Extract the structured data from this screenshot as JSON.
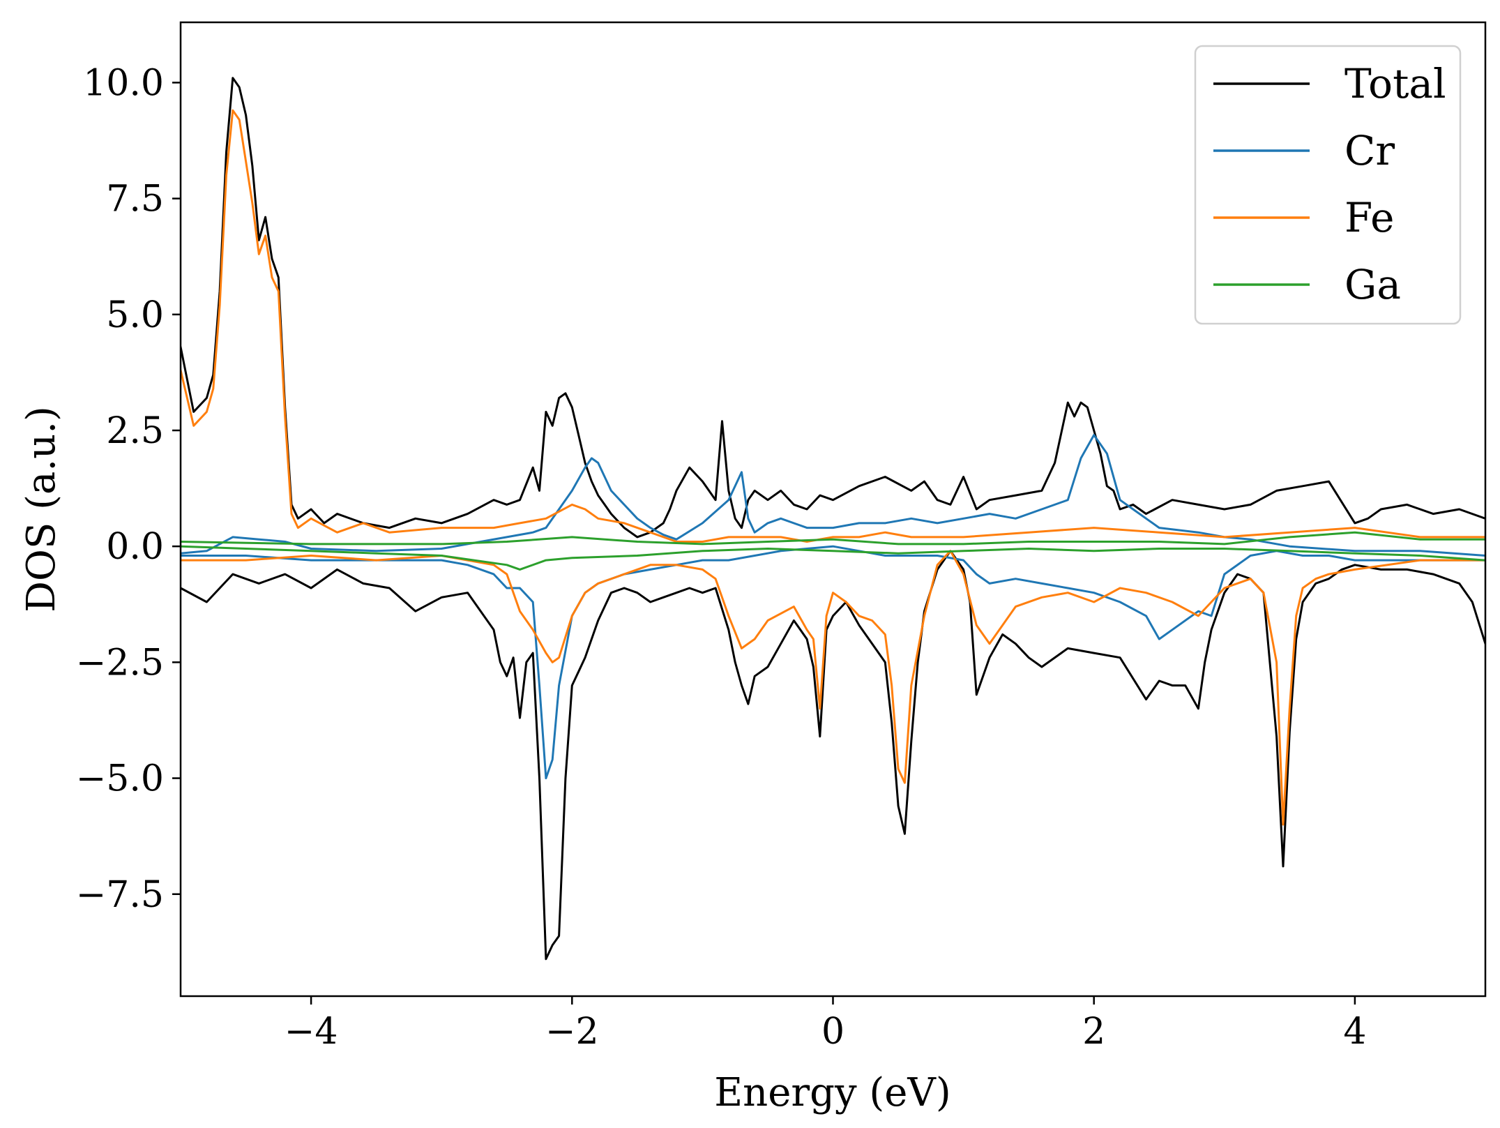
{
  "chart_data": {
    "type": "line",
    "title": "",
    "xlabel": "Energy (eV)",
    "ylabel": "DOS (a.u.)",
    "xlim": [
      -5,
      5
    ],
    "ylim": [
      -9.7,
      11.3
    ],
    "xticks": [
      -4,
      -2,
      0,
      2,
      4
    ],
    "xtick_labels": [
      "−4",
      "−2",
      "0",
      "2",
      "4"
    ],
    "yticks": [
      -7.5,
      -5.0,
      -2.5,
      0.0,
      2.5,
      5.0,
      7.5,
      10.0
    ],
    "ytick_labels": [
      "−7.5",
      "−5.0",
      "−2.5",
      "0.0",
      "2.5",
      "5.0",
      "7.5",
      "10.0"
    ],
    "grid": false,
    "legend_position": "top-right",
    "series": [
      {
        "name": "Total",
        "color": "#000000",
        "spin_up": {
          "x": [
            -5.0,
            -4.9,
            -4.8,
            -4.75,
            -4.7,
            -4.65,
            -4.6,
            -4.55,
            -4.5,
            -4.45,
            -4.4,
            -4.35,
            -4.3,
            -4.25,
            -4.2,
            -4.15,
            -4.1,
            -4.0,
            -3.9,
            -3.8,
            -3.6,
            -3.4,
            -3.2,
            -3.0,
            -2.8,
            -2.6,
            -2.5,
            -2.4,
            -2.3,
            -2.25,
            -2.2,
            -2.15,
            -2.1,
            -2.05,
            -2.0,
            -1.95,
            -1.9,
            -1.85,
            -1.8,
            -1.75,
            -1.7,
            -1.6,
            -1.5,
            -1.4,
            -1.3,
            -1.25,
            -1.2,
            -1.1,
            -1.0,
            -0.9,
            -0.85,
            -0.8,
            -0.75,
            -0.7,
            -0.65,
            -0.6,
            -0.5,
            -0.4,
            -0.3,
            -0.2,
            -0.1,
            0.0,
            0.2,
            0.4,
            0.6,
            0.7,
            0.8,
            0.9,
            1.0,
            1.1,
            1.2,
            1.4,
            1.6,
            1.7,
            1.8,
            1.85,
            1.9,
            1.95,
            2.0,
            2.05,
            2.1,
            2.15,
            2.2,
            2.3,
            2.4,
            2.6,
            2.8,
            3.0,
            3.2,
            3.4,
            3.6,
            3.8,
            4.0,
            4.1,
            4.2,
            4.4,
            4.6,
            4.8,
            5.0
          ],
          "y": [
            4.3,
            2.9,
            3.2,
            3.7,
            5.5,
            8.5,
            10.1,
            9.9,
            9.3,
            8.2,
            6.6,
            7.1,
            6.2,
            5.8,
            3.0,
            0.9,
            0.6,
            0.8,
            0.5,
            0.7,
            0.5,
            0.4,
            0.6,
            0.5,
            0.7,
            1.0,
            0.9,
            1.0,
            1.7,
            1.2,
            2.9,
            2.6,
            3.2,
            3.3,
            3.0,
            2.4,
            1.8,
            1.4,
            1.1,
            0.9,
            0.7,
            0.4,
            0.2,
            0.3,
            0.5,
            0.8,
            1.2,
            1.7,
            1.4,
            1.0,
            2.7,
            1.2,
            0.6,
            0.4,
            1.0,
            1.2,
            1.0,
            1.2,
            0.9,
            0.8,
            1.1,
            1.0,
            1.3,
            1.5,
            1.2,
            1.4,
            1.0,
            0.9,
            1.5,
            0.8,
            1.0,
            1.1,
            1.2,
            1.8,
            3.1,
            2.8,
            3.1,
            3.0,
            2.5,
            2.0,
            1.3,
            1.2,
            0.8,
            0.9,
            0.7,
            1.0,
            0.9,
            0.8,
            0.9,
            1.2,
            1.3,
            1.4,
            0.5,
            0.6,
            0.8,
            0.9,
            0.7,
            0.8,
            0.6
          ]
        },
        "spin_down": {
          "x": [
            -5.0,
            -4.8,
            -4.6,
            -4.4,
            -4.2,
            -4.0,
            -3.8,
            -3.6,
            -3.4,
            -3.2,
            -3.0,
            -2.8,
            -2.6,
            -2.55,
            -2.5,
            -2.45,
            -2.4,
            -2.35,
            -2.3,
            -2.25,
            -2.2,
            -2.15,
            -2.1,
            -2.05,
            -2.0,
            -1.95,
            -1.9,
            -1.8,
            -1.7,
            -1.6,
            -1.5,
            -1.4,
            -1.3,
            -1.2,
            -1.1,
            -1.0,
            -0.9,
            -0.8,
            -0.75,
            -0.7,
            -0.65,
            -0.6,
            -0.5,
            -0.4,
            -0.3,
            -0.2,
            -0.15,
            -0.1,
            -0.05,
            0.0,
            0.1,
            0.2,
            0.3,
            0.4,
            0.45,
            0.5,
            0.55,
            0.6,
            0.65,
            0.7,
            0.8,
            0.9,
            1.0,
            1.05,
            1.1,
            1.2,
            1.3,
            1.4,
            1.5,
            1.6,
            1.8,
            2.0,
            2.2,
            2.4,
            2.5,
            2.6,
            2.7,
            2.8,
            2.85,
            2.9,
            3.0,
            3.1,
            3.2,
            3.3,
            3.4,
            3.45,
            3.5,
            3.55,
            3.6,
            3.7,
            3.8,
            3.9,
            4.0,
            4.2,
            4.4,
            4.6,
            4.8,
            4.9,
            5.0
          ],
          "y": [
            -0.9,
            -1.2,
            -0.6,
            -0.8,
            -0.6,
            -0.9,
            -0.5,
            -0.8,
            -0.9,
            -1.4,
            -1.1,
            -1.0,
            -1.8,
            -2.5,
            -2.8,
            -2.4,
            -3.7,
            -2.5,
            -2.3,
            -5.0,
            -8.9,
            -8.6,
            -8.4,
            -5.0,
            -3.0,
            -2.7,
            -2.4,
            -1.6,
            -1.0,
            -0.9,
            -1.0,
            -1.2,
            -1.1,
            -1.0,
            -0.9,
            -1.0,
            -0.9,
            -1.8,
            -2.5,
            -3.0,
            -3.4,
            -2.8,
            -2.6,
            -2.1,
            -1.6,
            -2.0,
            -2.6,
            -4.1,
            -1.8,
            -1.5,
            -1.2,
            -1.7,
            -2.1,
            -2.5,
            -3.8,
            -5.6,
            -6.2,
            -4.2,
            -2.5,
            -1.4,
            -0.5,
            -0.1,
            -0.5,
            -1.2,
            -3.2,
            -2.4,
            -1.9,
            -2.1,
            -2.4,
            -2.6,
            -2.2,
            -2.3,
            -2.4,
            -3.3,
            -2.9,
            -3.0,
            -3.0,
            -3.5,
            -2.5,
            -1.8,
            -1.0,
            -0.6,
            -0.7,
            -1.0,
            -4.1,
            -6.9,
            -4.0,
            -2.0,
            -1.2,
            -0.8,
            -0.7,
            -0.5,
            -0.4,
            -0.5,
            -0.5,
            -0.6,
            -0.8,
            -1.2,
            -2.1
          ]
        }
      },
      {
        "name": "Cr",
        "color": "#1f77b4",
        "spin_up": {
          "x": [
            -5.0,
            -4.8,
            -4.6,
            -4.4,
            -4.2,
            -4.0,
            -3.5,
            -3.0,
            -2.5,
            -2.3,
            -2.2,
            -2.1,
            -2.0,
            -1.9,
            -1.85,
            -1.8,
            -1.7,
            -1.6,
            -1.5,
            -1.4,
            -1.3,
            -1.2,
            -1.0,
            -0.8,
            -0.7,
            -0.65,
            -0.6,
            -0.5,
            -0.4,
            -0.2,
            0.0,
            0.2,
            0.4,
            0.6,
            0.8,
            1.0,
            1.2,
            1.4,
            1.6,
            1.8,
            1.9,
            2.0,
            2.1,
            2.2,
            2.3,
            2.5,
            2.8,
            3.0,
            3.2,
            3.5,
            4.0,
            4.5,
            5.0
          ],
          "y": [
            -0.15,
            -0.1,
            0.2,
            0.15,
            0.1,
            -0.05,
            -0.1,
            -0.05,
            0.2,
            0.3,
            0.4,
            0.8,
            1.2,
            1.7,
            1.9,
            1.8,
            1.2,
            0.9,
            0.6,
            0.4,
            0.25,
            0.15,
            0.5,
            1.0,
            1.6,
            0.6,
            0.3,
            0.5,
            0.6,
            0.4,
            0.4,
            0.5,
            0.5,
            0.6,
            0.5,
            0.6,
            0.7,
            0.6,
            0.8,
            1.0,
            1.9,
            2.4,
            2.0,
            1.0,
            0.8,
            0.4,
            0.3,
            0.2,
            0.15,
            0.0,
            -0.1,
            -0.1,
            -0.2
          ]
        },
        "spin_down": {
          "x": [
            -5.0,
            -4.5,
            -4.0,
            -3.5,
            -3.0,
            -2.8,
            -2.6,
            -2.5,
            -2.4,
            -2.3,
            -2.25,
            -2.2,
            -2.15,
            -2.1,
            -2.0,
            -1.9,
            -1.8,
            -1.6,
            -1.4,
            -1.2,
            -1.0,
            -0.8,
            -0.6,
            -0.4,
            -0.2,
            0.0,
            0.2,
            0.4,
            0.6,
            0.8,
            1.0,
            1.1,
            1.2,
            1.4,
            1.6,
            1.8,
            2.0,
            2.2,
            2.4,
            2.5,
            2.6,
            2.8,
            2.9,
            3.0,
            3.2,
            3.4,
            3.6,
            3.8,
            4.0,
            4.5,
            5.0
          ],
          "y": [
            -0.2,
            -0.2,
            -0.3,
            -0.3,
            -0.3,
            -0.4,
            -0.6,
            -0.9,
            -0.9,
            -1.2,
            -3.0,
            -5.0,
            -4.6,
            -3.0,
            -1.5,
            -1.0,
            -0.8,
            -0.6,
            -0.5,
            -0.4,
            -0.3,
            -0.3,
            -0.2,
            -0.1,
            -0.05,
            0.0,
            -0.1,
            -0.2,
            -0.2,
            -0.2,
            -0.3,
            -0.6,
            -0.8,
            -0.7,
            -0.8,
            -0.9,
            -1.0,
            -1.2,
            -1.5,
            -2.0,
            -1.8,
            -1.4,
            -1.5,
            -0.6,
            -0.2,
            -0.1,
            -0.2,
            -0.2,
            -0.3,
            -0.3,
            -0.3
          ]
        }
      },
      {
        "name": "Fe",
        "color": "#ff7f0e",
        "spin_up": {
          "x": [
            -5.0,
            -4.9,
            -4.8,
            -4.75,
            -4.7,
            -4.65,
            -4.6,
            -4.55,
            -4.5,
            -4.45,
            -4.4,
            -4.35,
            -4.3,
            -4.25,
            -4.2,
            -4.15,
            -4.1,
            -4.0,
            -3.8,
            -3.6,
            -3.4,
            -3.0,
            -2.6,
            -2.4,
            -2.2,
            -2.0,
            -1.9,
            -1.8,
            -1.6,
            -1.4,
            -1.2,
            -1.0,
            -0.8,
            -0.6,
            -0.4,
            -0.2,
            0.0,
            0.2,
            0.4,
            0.6,
            0.8,
            1.0,
            1.5,
            2.0,
            2.5,
            3.0,
            3.5,
            4.0,
            4.5,
            5.0
          ],
          "y": [
            3.8,
            2.6,
            2.9,
            3.4,
            5.2,
            8.0,
            9.4,
            9.2,
            8.3,
            7.4,
            6.3,
            6.7,
            5.8,
            5.5,
            2.8,
            0.7,
            0.4,
            0.6,
            0.3,
            0.5,
            0.3,
            0.4,
            0.4,
            0.5,
            0.6,
            0.9,
            0.8,
            0.6,
            0.5,
            0.3,
            0.1,
            0.1,
            0.2,
            0.2,
            0.2,
            0.1,
            0.2,
            0.2,
            0.3,
            0.2,
            0.2,
            0.2,
            0.3,
            0.4,
            0.3,
            0.2,
            0.3,
            0.4,
            0.2,
            0.2
          ]
        },
        "spin_down": {
          "x": [
            -5.0,
            -4.5,
            -4.0,
            -3.5,
            -3.0,
            -2.8,
            -2.6,
            -2.5,
            -2.4,
            -2.3,
            -2.2,
            -2.15,
            -2.1,
            -2.0,
            -1.9,
            -1.8,
            -1.6,
            -1.4,
            -1.2,
            -1.0,
            -0.9,
            -0.8,
            -0.7,
            -0.6,
            -0.5,
            -0.3,
            -0.2,
            -0.15,
            -0.1,
            -0.05,
            0.0,
            0.1,
            0.2,
            0.3,
            0.4,
            0.45,
            0.5,
            0.55,
            0.6,
            0.7,
            0.8,
            0.9,
            1.0,
            1.1,
            1.2,
            1.4,
            1.6,
            1.8,
            2.0,
            2.2,
            2.4,
            2.6,
            2.8,
            3.0,
            3.2,
            3.3,
            3.4,
            3.45,
            3.5,
            3.55,
            3.6,
            3.7,
            3.8,
            4.0,
            4.5,
            5.0
          ],
          "y": [
            -0.3,
            -0.3,
            -0.2,
            -0.3,
            -0.2,
            -0.3,
            -0.4,
            -0.6,
            -1.4,
            -1.8,
            -2.3,
            -2.5,
            -2.4,
            -1.5,
            -1.0,
            -0.8,
            -0.6,
            -0.4,
            -0.4,
            -0.5,
            -0.7,
            -1.5,
            -2.2,
            -2.0,
            -1.6,
            -1.3,
            -1.8,
            -2.0,
            -3.5,
            -1.5,
            -1.0,
            -1.2,
            -1.5,
            -1.6,
            -1.9,
            -3.0,
            -4.8,
            -5.1,
            -3.0,
            -1.5,
            -0.4,
            -0.1,
            -0.6,
            -1.7,
            -2.1,
            -1.3,
            -1.1,
            -1.0,
            -1.2,
            -0.9,
            -1.0,
            -1.2,
            -1.5,
            -0.9,
            -0.7,
            -1.0,
            -2.5,
            -6.0,
            -3.5,
            -1.5,
            -0.9,
            -0.7,
            -0.6,
            -0.5,
            -0.3,
            -0.3
          ]
        }
      },
      {
        "name": "Ga",
        "color": "#2ca02c",
        "spin_up": {
          "x": [
            -5.0,
            -4.0,
            -3.0,
            -2.5,
            -2.0,
            -1.5,
            -1.0,
            -0.5,
            0.0,
            0.5,
            1.0,
            1.5,
            2.0,
            2.5,
            3.0,
            3.5,
            4.0,
            4.5,
            5.0
          ],
          "y": [
            0.1,
            0.05,
            0.05,
            0.1,
            0.2,
            0.1,
            0.05,
            0.1,
            0.15,
            0.05,
            0.05,
            0.1,
            0.1,
            0.1,
            0.05,
            0.2,
            0.3,
            0.15,
            0.15
          ]
        },
        "spin_down": {
          "x": [
            -5.0,
            -4.5,
            -4.0,
            -3.5,
            -3.0,
            -2.5,
            -2.4,
            -2.2,
            -2.0,
            -1.5,
            -1.0,
            -0.5,
            0.0,
            0.5,
            1.0,
            1.5,
            2.0,
            2.5,
            3.0,
            3.5,
            4.0,
            4.5,
            5.0
          ],
          "y": [
            0.0,
            -0.05,
            -0.1,
            -0.15,
            -0.2,
            -0.4,
            -0.5,
            -0.3,
            -0.25,
            -0.2,
            -0.1,
            -0.05,
            -0.1,
            -0.15,
            -0.1,
            -0.05,
            -0.1,
            -0.05,
            -0.05,
            -0.1,
            -0.15,
            -0.2,
            -0.3
          ]
        }
      }
    ]
  }
}
